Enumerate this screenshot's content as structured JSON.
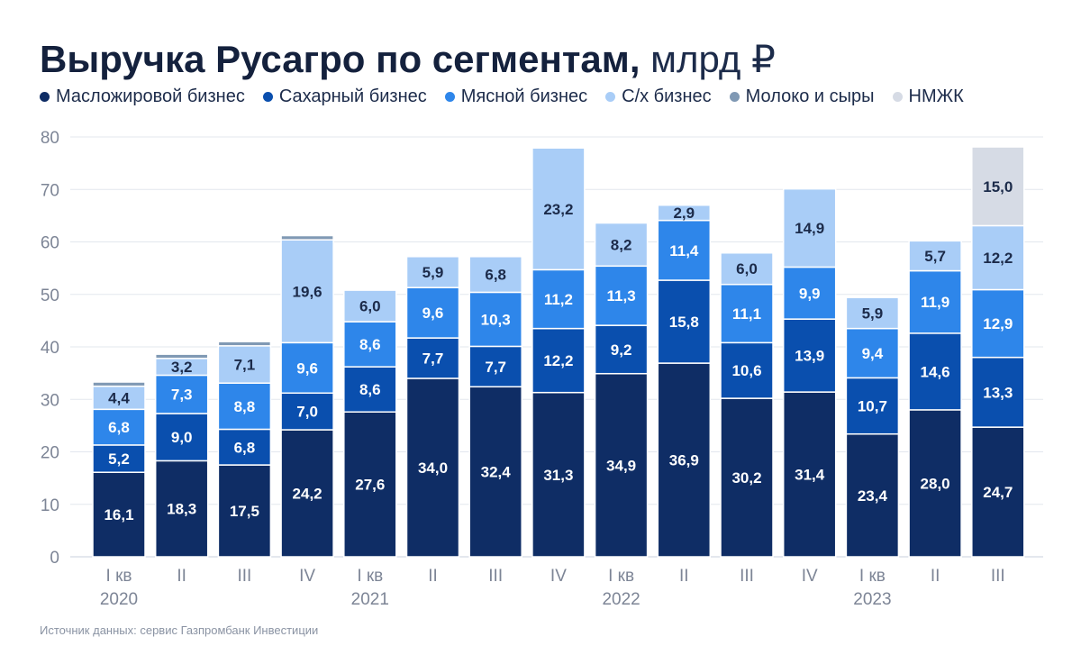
{
  "header": {
    "title": "Выручка Русагро по сегментам,",
    "unit": "млрд ₽"
  },
  "source": "Источник данных: сервис Газпромбанк Инвестиции",
  "colors": {
    "oil": "#0f2d65",
    "sugar": "#0a4fae",
    "meat": "#2e86ea",
    "agri": "#a9cdf7",
    "dairy": "#8099b4",
    "nmzhk": "#d6dbe5",
    "label_light": "#ffffff",
    "label_dark": "#1c2b4a"
  },
  "chart_data": {
    "type": "bar",
    "stacked": true,
    "title": "Выручка Русагро по сегментам, млрд ₽",
    "ylim": [
      0,
      80
    ],
    "yticks": [
      0,
      10,
      20,
      30,
      40,
      50,
      60,
      70,
      80
    ],
    "grid": true,
    "legend_position": "top",
    "categories": [
      "I кв",
      "II",
      "III",
      "IV",
      "I кв",
      "II",
      "III",
      "IV",
      "I кв",
      "II",
      "III",
      "IV",
      "I кв",
      "II",
      "III"
    ],
    "years": [
      {
        "label": "2020",
        "index": 0
      },
      {
        "label": "2021",
        "index": 4
      },
      {
        "label": "2022",
        "index": 8
      },
      {
        "label": "2023",
        "index": 12
      }
    ],
    "series": [
      {
        "key": "oil",
        "name": "Масложировой бизнес",
        "values": [
          16.1,
          18.3,
          17.5,
          24.2,
          27.6,
          34.0,
          32.4,
          31.3,
          34.9,
          36.9,
          30.2,
          31.4,
          23.4,
          28.0,
          24.7
        ],
        "labels": [
          "16,1",
          "18,3",
          "17,5",
          "24,2",
          "27,6",
          "34,0",
          "32,4",
          "31,3",
          "34,9",
          "36,9",
          "30,2",
          "31,4",
          "23,4",
          "28,0",
          "24,7"
        ]
      },
      {
        "key": "sugar",
        "name": "Сахарный бизнес",
        "values": [
          5.2,
          9.0,
          6.8,
          7.0,
          8.6,
          7.7,
          7.7,
          12.2,
          9.2,
          15.8,
          10.6,
          13.9,
          10.7,
          14.6,
          13.3
        ],
        "labels": [
          "5,2",
          "9,0",
          "6,8",
          "7,0",
          "8,6",
          "7,7",
          "7,7",
          "12,2",
          "9,2",
          "15,8",
          "10,6",
          "13,9",
          "10,7",
          "14,6",
          "13,3"
        ]
      },
      {
        "key": "meat",
        "name": "Мясной бизнес",
        "values": [
          6.8,
          7.3,
          8.8,
          9.6,
          8.6,
          9.6,
          10.3,
          11.2,
          11.3,
          11.4,
          11.1,
          9.9,
          9.4,
          11.9,
          12.9
        ],
        "labels": [
          "6,8",
          "7,3",
          "8,8",
          "9,6",
          "8,6",
          "9,6",
          "10,3",
          "11,2",
          "11,3",
          "11,4",
          "11,1",
          "9,9",
          "9,4",
          "11,9",
          "12,9"
        ]
      },
      {
        "key": "agri",
        "name": "С/х бизнес",
        "values": [
          4.4,
          3.2,
          7.1,
          19.6,
          6.0,
          5.9,
          6.8,
          23.2,
          8.2,
          2.9,
          6.0,
          14.9,
          5.9,
          5.7,
          12.2
        ],
        "labels": [
          "4,4",
          "3,2",
          "7,1",
          "19,6",
          "6,0",
          "5,9",
          "6,8",
          "23,2",
          "8,2",
          "2,9",
          "6,0",
          "14,9",
          "5,9",
          "5,7",
          "12,2"
        ]
      },
      {
        "key": "dairy",
        "name": "Молоко и сыры",
        "values": [
          0.8,
          0.8,
          0.8,
          0.8,
          0,
          0,
          0,
          0,
          0,
          0,
          0,
          0,
          0,
          0,
          0
        ],
        "labels": [
          "",
          "",
          "",
          "",
          "",
          "",
          "",
          "",
          "",
          "",
          "",
          "",
          "",
          "",
          ""
        ]
      },
      {
        "key": "nmzhk",
        "name": "НМЖК",
        "values": [
          0,
          0,
          0,
          0,
          0,
          0,
          0,
          0,
          0,
          0,
          0,
          0,
          0,
          0,
          15.0
        ],
        "labels": [
          "",
          "",
          "",
          "",
          "",
          "",
          "",
          "",
          "",
          "",
          "",
          "",
          "",
          "",
          "15,0"
        ]
      }
    ]
  }
}
